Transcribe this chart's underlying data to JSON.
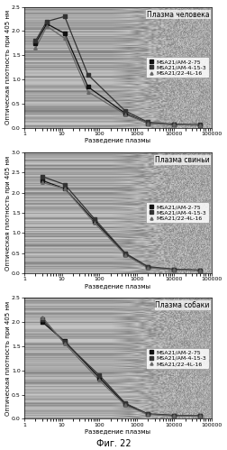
{
  "subplots": [
    {
      "title": "Плазма человека",
      "ylim": [
        0,
        2.5
      ],
      "yticks": [
        0,
        0.5,
        1.0,
        1.5,
        2.0,
        2.5
      ],
      "series": [
        {
          "label": "MSA21/AM-2-75",
          "marker": "s",
          "color": "#111111",
          "x": [
            2,
            4,
            12,
            50,
            500,
            2000,
            10000,
            50000
          ],
          "y": [
            1.75,
            2.15,
            1.95,
            0.85,
            0.3,
            0.1,
            0.07,
            0.06
          ]
        },
        {
          "label": "MSA21/AM-4-15-3",
          "marker": "s",
          "color": "#333333",
          "x": [
            2,
            4,
            12,
            50,
            500,
            2000,
            10000,
            50000
          ],
          "y": [
            1.8,
            2.2,
            2.3,
            1.1,
            0.35,
            0.12,
            0.08,
            0.07
          ]
        },
        {
          "label": "MSA21/22-4L-16",
          "marker": "^",
          "color": "#666666",
          "x": [
            2,
            4,
            12,
            50,
            500,
            2000,
            10000,
            50000
          ],
          "y": [
            1.65,
            2.1,
            1.85,
            0.75,
            0.28,
            0.1,
            0.07,
            0.06
          ]
        }
      ]
    },
    {
      "title": "Плазма свиньи",
      "ylim": [
        0,
        3.0
      ],
      "yticks": [
        0,
        0.5,
        1.0,
        1.5,
        2.0,
        2.5,
        3.0
      ],
      "series": [
        {
          "label": "MSA21/AM-2-75",
          "marker": "s",
          "color": "#111111",
          "x": [
            3,
            12,
            75,
            500,
            2000,
            10000,
            50000
          ],
          "y": [
            2.3,
            2.1,
            1.3,
            0.48,
            0.15,
            0.1,
            0.08
          ]
        },
        {
          "label": "MSA21/AM-4-15-3",
          "marker": "s",
          "color": "#333333",
          "x": [
            3,
            12,
            75,
            500,
            2000,
            10000,
            50000
          ],
          "y": [
            2.4,
            2.2,
            1.35,
            0.5,
            0.17,
            0.1,
            0.08
          ]
        },
        {
          "label": "MSA21/22-4L-16",
          "marker": "^",
          "color": "#666666",
          "x": [
            3,
            12,
            75,
            500,
            2000,
            10000,
            50000
          ],
          "y": [
            2.25,
            2.1,
            1.25,
            0.46,
            0.14,
            0.09,
            0.07
          ]
        }
      ]
    },
    {
      "title": "Плазма собаки",
      "ylim": [
        0,
        2.5
      ],
      "yticks": [
        0,
        0.5,
        1.0,
        1.5,
        2.0,
        2.5
      ],
      "series": [
        {
          "label": "MSA21/AM-2-75",
          "marker": "s",
          "color": "#111111",
          "x": [
            3,
            12,
            100,
            500,
            2000,
            10000,
            50000
          ],
          "y": [
            2.0,
            1.6,
            0.85,
            0.3,
            0.1,
            0.07,
            0.06
          ]
        },
        {
          "label": "MSA21/AM-4-15-3",
          "marker": "s",
          "color": "#333333",
          "x": [
            3,
            12,
            100,
            500,
            2000,
            10000,
            50000
          ],
          "y": [
            2.05,
            1.58,
            0.9,
            0.32,
            0.1,
            0.07,
            0.06
          ]
        },
        {
          "label": "MSA21/22-4L-16",
          "marker": "^",
          "color": "#666666",
          "x": [
            3,
            12,
            100,
            500,
            2000,
            10000,
            50000
          ],
          "y": [
            2.1,
            1.55,
            0.8,
            0.28,
            0.09,
            0.06,
            0.055
          ]
        }
      ]
    }
  ],
  "xlabel": "Разведение плазмы",
  "ylabel": "Оптическая плотность при 405 нм",
  "fig_label": "Фиг. 22",
  "xlim": [
    1,
    100000
  ],
  "legend_fontsize": 4.5,
  "title_fontsize": 5.5,
  "axis_fontsize": 5,
  "tick_fontsize": 4.5
}
